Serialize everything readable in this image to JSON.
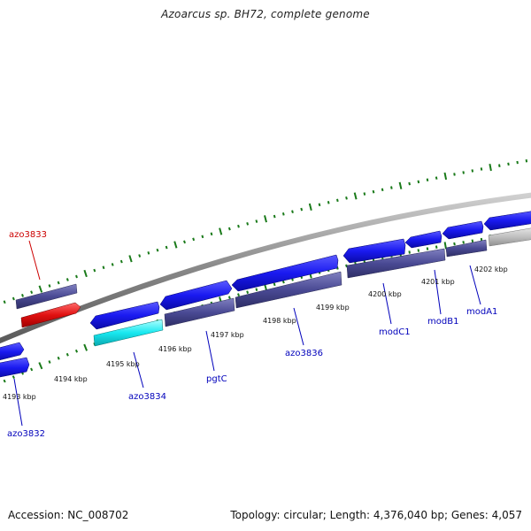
{
  "title": "Azoarcus sp. BH72, complete genome",
  "footer": {
    "accession": "Accession: NC_008702",
    "summary": "Topology: circular; Length: 4,376,040 bp; Genes: 4,057"
  },
  "colors": {
    "gene_forward": "#1a1af0",
    "gene_reverse": "#4a4a94",
    "highlight_red": "#e01010",
    "highlight_cyan": "#18e8f0",
    "gray_gene": "#c0c0c0",
    "tick_green": "#1a7a1a",
    "label_blue": "#0000bb",
    "label_red": "#cc0000",
    "backbone": "#8c8c8c"
  },
  "kbp_labels": [
    "4193 kbp",
    "4194 kbp",
    "4195 kbp",
    "4196 kbp",
    "4197 kbp",
    "4198 kbp",
    "4199 kbp",
    "4200 kbp",
    "4201 kbp",
    "4202 kbp"
  ],
  "gene_labels": [
    "azo3833",
    "azo3832",
    "azo3834",
    "pgtC",
    "azo3836",
    "modC1",
    "modB1",
    "modA1"
  ]
}
